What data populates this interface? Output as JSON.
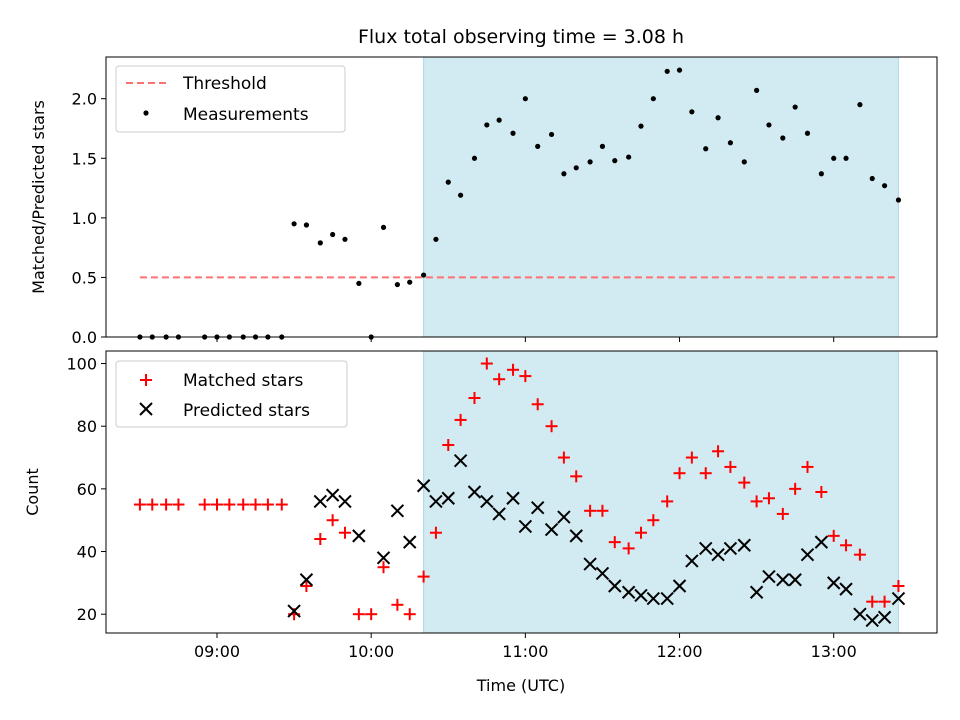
{
  "chart_data": [
    {
      "type": "scatter",
      "title": "Flux total observing time = 3.08 h",
      "ylabel": "Matched/Predicted stars",
      "xlabel": "",
      "ylim": [
        0,
        2.35
      ],
      "xlim_hours": [
        8.28,
        13.67
      ],
      "yticks": [
        0.0,
        0.5,
        1.0,
        1.5,
        2.0
      ],
      "ytick_labels": [
        "0.0",
        "0.5",
        "1.0",
        "1.5",
        "2.0"
      ],
      "shaded_span_hours": [
        10.34,
        13.42
      ],
      "shade_color": "#add8e6",
      "legend_position": "upper-left",
      "legend": {
        "threshold": "Threshold",
        "measurements": "Measurements"
      },
      "threshold": {
        "value": 0.5,
        "x_start": 8.5,
        "x_end": 13.42,
        "color": "#ff7070"
      },
      "series": [
        {
          "name": "Measurements",
          "color": "#000000",
          "x": [
            8.5,
            8.58,
            8.67,
            8.75,
            8.92,
            9.0,
            9.08,
            9.17,
            9.25,
            9.33,
            9.42,
            9.5,
            9.58,
            9.67,
            9.75,
            9.83,
            9.92,
            10.0,
            10.08,
            10.17,
            10.25,
            10.34,
            10.42,
            10.5,
            10.58,
            10.67,
            10.75,
            10.83,
            10.92,
            11.0,
            11.08,
            11.17,
            11.25,
            11.33,
            11.42,
            11.5,
            11.58,
            11.67,
            11.75,
            11.83,
            11.92,
            12.0,
            12.08,
            12.17,
            12.25,
            12.33,
            12.42,
            12.5,
            12.58,
            12.67,
            12.75,
            12.83,
            12.92,
            13.0,
            13.08,
            13.17,
            13.25,
            13.33,
            13.42
          ],
          "y": [
            0,
            0,
            0,
            0,
            0,
            0,
            0,
            0,
            0,
            0,
            0,
            0.95,
            0.94,
            0.79,
            0.86,
            0.82,
            0.45,
            0,
            0.92,
            0.44,
            0.46,
            0.52,
            0.82,
            1.3,
            1.19,
            1.5,
            1.78,
            1.82,
            1.71,
            2.0,
            1.6,
            1.7,
            1.37,
            1.42,
            1.47,
            1.6,
            1.48,
            1.51,
            1.77,
            2.0,
            2.23,
            2.24,
            1.89,
            1.58,
            1.84,
            1.63,
            1.47,
            2.07,
            1.78,
            1.67,
            1.93,
            1.71,
            1.37,
            1.5,
            1.5,
            1.95,
            1.33,
            1.27,
            1.15
          ]
        }
      ]
    },
    {
      "type": "scatter",
      "title": "",
      "ylabel": "Count",
      "xlabel": "Time (UTC)",
      "ylim": [
        14,
        104
      ],
      "xlim_hours": [
        8.28,
        13.67
      ],
      "yticks": [
        20,
        40,
        60,
        80,
        100
      ],
      "ytick_labels": [
        "20",
        "40",
        "60",
        "80",
        "100"
      ],
      "xticks": [
        9,
        10,
        11,
        12,
        13
      ],
      "xtick_labels": [
        "09:00",
        "10:00",
        "11:00",
        "12:00",
        "13:00"
      ],
      "shaded_span_hours": [
        10.34,
        13.42
      ],
      "shade_color": "#add8e6",
      "legend_position": "upper-left",
      "legend": {
        "matched": "Matched stars",
        "predicted": "Predicted stars"
      },
      "series": [
        {
          "name": "Matched stars",
          "marker": "plus",
          "color": "#ff0000",
          "x": [
            8.5,
            8.58,
            8.67,
            8.75,
            8.92,
            9.0,
            9.08,
            9.17,
            9.25,
            9.33,
            9.42,
            9.5,
            9.58,
            9.67,
            9.75,
            9.83,
            9.92,
            10.0,
            10.08,
            10.17,
            10.25,
            10.34,
            10.42,
            10.5,
            10.58,
            10.67,
            10.75,
            10.83,
            10.92,
            11.0,
            11.08,
            11.17,
            11.25,
            11.33,
            11.42,
            11.5,
            11.58,
            11.67,
            11.75,
            11.83,
            11.92,
            12.0,
            12.08,
            12.17,
            12.25,
            12.33,
            12.42,
            12.5,
            12.58,
            12.67,
            12.75,
            12.83,
            12.92,
            13.0,
            13.08,
            13.17,
            13.25,
            13.33,
            13.42
          ],
          "y": [
            55,
            55,
            55,
            55,
            55,
            55,
            55,
            55,
            55,
            55,
            55,
            20,
            29,
            44,
            50,
            46,
            20,
            20,
            35,
            23,
            20,
            32,
            46,
            74,
            82,
            89,
            100,
            95,
            98,
            96,
            87,
            80,
            70,
            64,
            53,
            53,
            43,
            41,
            46,
            50,
            56,
            65,
            70,
            65,
            72,
            67,
            62,
            56,
            57,
            52,
            60,
            67,
            59,
            45,
            42,
            39,
            24,
            24,
            29
          ]
        },
        {
          "name": "Predicted stars",
          "marker": "x",
          "color": "#000000",
          "x": [
            9.5,
            9.58,
            9.67,
            9.75,
            9.83,
            9.92,
            10.08,
            10.17,
            10.25,
            10.34,
            10.42,
            10.5,
            10.58,
            10.67,
            10.75,
            10.83,
            10.92,
            11.0,
            11.08,
            11.17,
            11.25,
            11.33,
            11.42,
            11.5,
            11.58,
            11.67,
            11.75,
            11.83,
            11.92,
            12.0,
            12.08,
            12.17,
            12.25,
            12.33,
            12.42,
            12.5,
            12.58,
            12.67,
            12.75,
            12.83,
            12.92,
            13.0,
            13.08,
            13.17,
            13.25,
            13.33,
            13.42
          ],
          "y": [
            21,
            31,
            56,
            58,
            56,
            45,
            38,
            53,
            43,
            61,
            56,
            57,
            69,
            59,
            56,
            52,
            57,
            48,
            54,
            47,
            51,
            45,
            36,
            33,
            29,
            27,
            26,
            25,
            25,
            29,
            37,
            41,
            39,
            41,
            42,
            27,
            32,
            31,
            31,
            39,
            43,
            30,
            28,
            20,
            18,
            19,
            25
          ]
        }
      ]
    }
  ]
}
